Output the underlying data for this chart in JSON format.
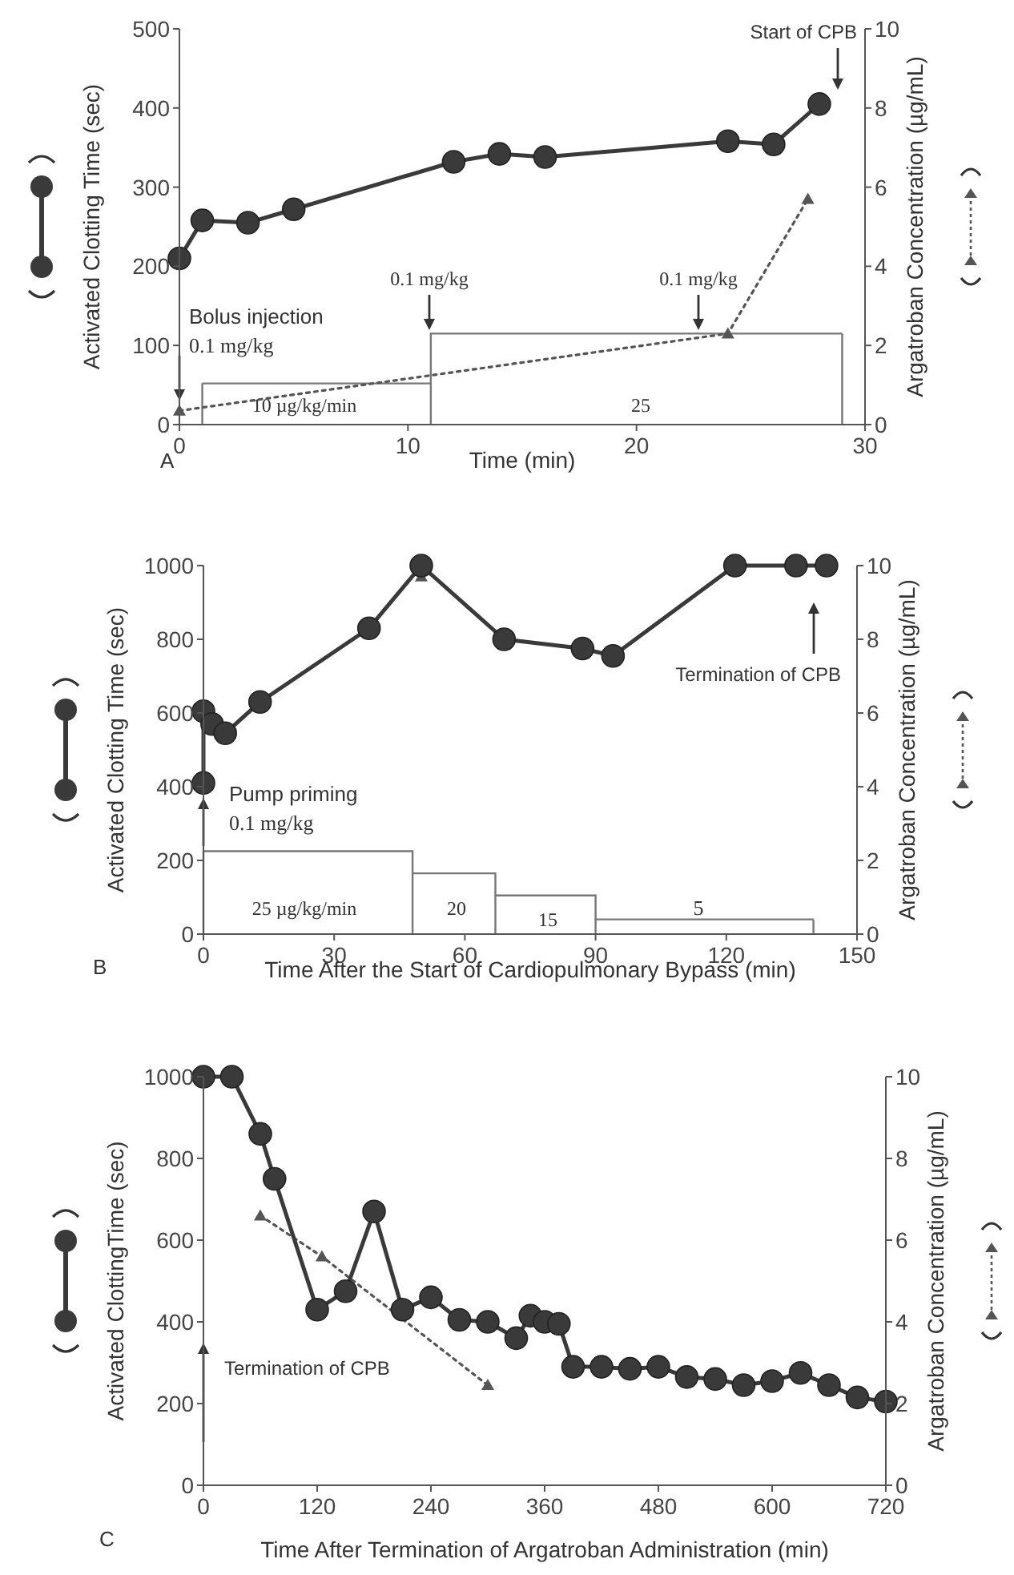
{
  "chart_data": [
    {
      "type": "line",
      "xlabel": "Time (min)",
      "ylabel": "Activated Clotting Time (sec)",
      "y2label": "Argatroban Concentration (µg/mL)",
      "xlim": [
        0,
        30
      ],
      "xticks": [
        0,
        10,
        20,
        30
      ],
      "ylim": [
        0,
        500
      ],
      "yticks": [
        0,
        100,
        200,
        300,
        400,
        500
      ],
      "y2lim": [
        0,
        10
      ],
      "y2ticks": [
        0,
        2,
        4,
        6,
        8,
        10
      ],
      "grid": false,
      "annotations": [
        "A",
        "Bolus injection\n0.1 mg/kg",
        "0.1 mg/kg",
        "0.1 mg/kg",
        "Start of CPB",
        "10 µg/kg/min",
        "25"
      ],
      "series": [
        {
          "type": "step",
          "color": "#777777",
          "x": [
            1,
            11,
            29
          ],
          "values": [
            52,
            115,
            115
          ],
          "marker": "none",
          "line_style": "solid"
        },
        {
          "axis": "y2",
          "color": "#555555",
          "x": [
            0,
            24,
            27.5
          ],
          "values": [
            0.35,
            2.3,
            5.7
          ],
          "marker": "triangle",
          "line_style": "dotted"
        },
        {
          "color": "#3a3a3a",
          "x": [
            0,
            1,
            3,
            5,
            12,
            14,
            16,
            24,
            26,
            28
          ],
          "values": [
            210,
            258,
            255,
            272,
            332,
            342,
            338,
            358,
            354,
            405
          ],
          "marker": "circle",
          "line_style": "solid"
        }
      ]
    },
    {
      "type": "line",
      "xlabel": "Time After the Start of Cardiopulmonary Bypass (min)",
      "ylabel": "Activated Clotting Time (sec)",
      "y2label": "Argatroban Concentration (µg/mL)",
      "xlim": [
        0,
        150
      ],
      "xticks": [
        0,
        30,
        60,
        90,
        120,
        150
      ],
      "ylim": [
        0,
        1000
      ],
      "yticks": [
        0,
        200,
        400,
        600,
        800,
        1000
      ],
      "y2lim": [
        0,
        10
      ],
      "y2ticks": [
        0,
        2,
        4,
        6,
        8,
        10
      ],
      "grid": false,
      "annotations": [
        "B",
        "Pump priming\n0.1 mg/kg",
        "Termination of CPB",
        "25 µg/kg/min",
        "20",
        "15",
        "5"
      ],
      "series": [
        {
          "type": "step",
          "color": "#777777",
          "x": [
            0,
            48,
            67,
            90,
            140
          ],
          "values": [
            225,
            165,
            105,
            40,
            40
          ],
          "marker": "none",
          "line_style": "solid"
        },
        {
          "axis": "y2",
          "color": "#555555",
          "x": [
            50
          ],
          "values": [
            9.7
          ],
          "marker": "triangle",
          "line_style": "dotted"
        },
        {
          "color": "#3a3a3a",
          "x": [
            0,
            0,
            2,
            5,
            13,
            38,
            50,
            69,
            87,
            94,
            122,
            136,
            143
          ],
          "values": [
            410,
            605,
            570,
            545,
            630,
            830,
            1000,
            800,
            775,
            755,
            1000,
            1000,
            1000
          ],
          "marker": "circle",
          "line_style": "solid"
        }
      ]
    },
    {
      "type": "line",
      "xlabel": "Time After Termination of Argatroban Administration (min)",
      "ylabel": "Activated ClottingTime (sec)",
      "y2label": "Argatroban Concentration (µg/mL)",
      "xlim": [
        0,
        720
      ],
      "xticks": [
        0,
        120,
        240,
        360,
        480,
        600,
        720
      ],
      "ylim": [
        0,
        1000
      ],
      "yticks": [
        0,
        200,
        400,
        600,
        800,
        1000
      ],
      "y2lim": [
        0,
        10
      ],
      "y2ticks": [
        0,
        2,
        4,
        6,
        8,
        10
      ],
      "grid": false,
      "annotations": [
        "C",
        "Termination of CPB"
      ],
      "series": [
        {
          "axis": "y2",
          "color": "#555555",
          "x": [
            60,
            125,
            300
          ],
          "values": [
            6.6,
            5.6,
            2.45
          ],
          "marker": "triangle",
          "line_style": "dotted"
        },
        {
          "color": "#3a3a3a",
          "x": [
            0,
            30,
            60,
            75,
            120,
            150,
            180,
            210,
            240,
            270,
            300,
            330,
            345,
            360,
            375,
            390,
            420,
            450,
            480,
            510,
            540,
            570,
            600,
            630,
            660,
            690,
            720
          ],
          "values": [
            1000,
            1000,
            860,
            750,
            430,
            475,
            670,
            430,
            460,
            405,
            400,
            360,
            415,
            400,
            395,
            290,
            290,
            285,
            290,
            265,
            260,
            245,
            255,
            275,
            245,
            215,
            205
          ],
          "marker": "circle",
          "line_style": "solid"
        }
      ]
    }
  ]
}
